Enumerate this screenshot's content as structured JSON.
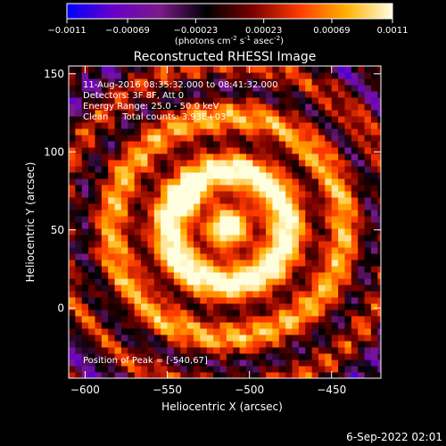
{
  "chart_data": {
    "type": "heatmap",
    "title": "Reconstructed RHESSI Image",
    "xlabel": "Heliocentric X (arcsec)",
    "ylabel": "Heliocentric Y (arcsec)",
    "xlim": [
      -610,
      -420
    ],
    "ylim": [
      -45,
      155
    ],
    "xticks": [
      -600,
      -550,
      -500,
      -450
    ],
    "yticks": [
      0,
      50,
      100,
      150
    ],
    "colorbar": {
      "ticks": [
        "-0.0011",
        "-0.00069",
        "-0.00023",
        "0.00023",
        "0.00069",
        "0.0011"
      ],
      "range": [
        -0.0011,
        0.0011
      ],
      "units_prefix": "(photons cm",
      "units_exp1": "-2",
      "units_mid": " s",
      "units_exp2": "-1",
      "units_mid2": " asec",
      "units_exp3": "-2",
      "units_suffix": ")",
      "colors": [
        "#0000ff",
        "#6a00c8",
        "#7a1a8a",
        "#000000",
        "#7a0000",
        "#ff3a00",
        "#ffb000",
        "#ffffe0"
      ]
    },
    "annotations": [
      "11-Aug-2016 08:35:32.000 to 08:41:32.000",
      "Detectors: 3F 8F, Att 0",
      "Energy Range: 25.0 - 50.0 keV",
      "Clean     Total counts: 3.93E+03"
    ],
    "peak_label": "Position of Peak = [-540,67]",
    "peak": {
      "x": -540,
      "y": 67,
      "value": 0.0011
    },
    "source_center": {
      "x": -515,
      "y": 50
    }
  },
  "footer": {
    "timestamp": "6-Sep-2022 02:01"
  }
}
